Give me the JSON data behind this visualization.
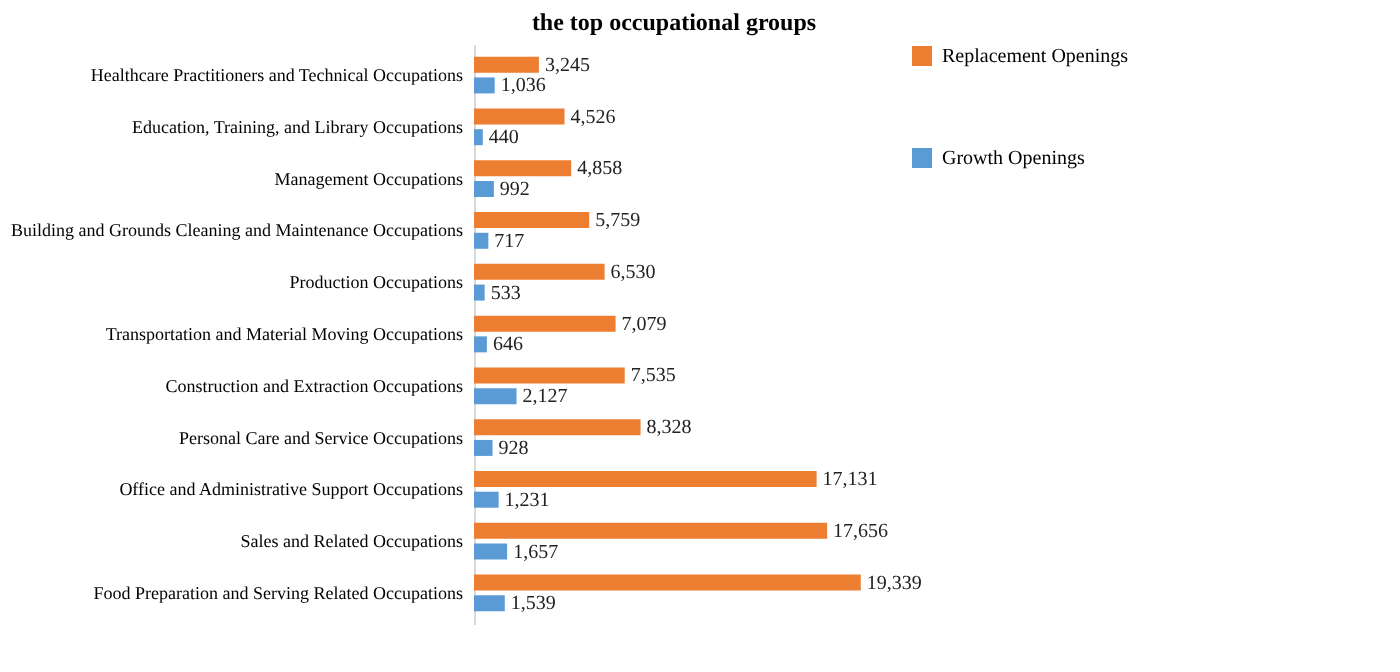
{
  "chart_data": {
    "type": "bar",
    "orientation": "horizontal",
    "title": "the top occupational groups",
    "categories": [
      "Healthcare Practitioners and Technical Occupations",
      "Education, Training, and Library Occupations",
      "Management Occupations",
      "Building and Grounds Cleaning and Maintenance Occupations",
      "Production Occupations",
      "Transportation and Material Moving Occupations",
      "Construction and Extraction Occupations",
      "Personal Care and Service Occupations",
      "Office and Administrative Support Occupations",
      "Sales and Related Occupations",
      "Food Preparation and Serving Related Occupations"
    ],
    "series": [
      {
        "name": "Replacement Openings",
        "color": "#ed7d31",
        "values": [
          3245,
          4526,
          4858,
          5759,
          6530,
          7079,
          7535,
          8328,
          17131,
          17656,
          19339
        ],
        "value_labels": [
          "3,245",
          "4,526",
          "4,858",
          "5,759",
          "6,530",
          "7,079",
          "7,535",
          "8,328",
          "17,131",
          "17,656",
          "19,339"
        ]
      },
      {
        "name": "Growth Openings",
        "color": "#5b9bd5",
        "values": [
          1036,
          440,
          992,
          717,
          533,
          646,
          2127,
          928,
          1231,
          1657,
          1539
        ],
        "value_labels": [
          "1,036",
          "440",
          "992",
          "717",
          "533",
          "646",
          "2,127",
          "928",
          "1,231",
          "1,657",
          "1,539"
        ]
      }
    ],
    "legend": "right",
    "grid": false
  }
}
